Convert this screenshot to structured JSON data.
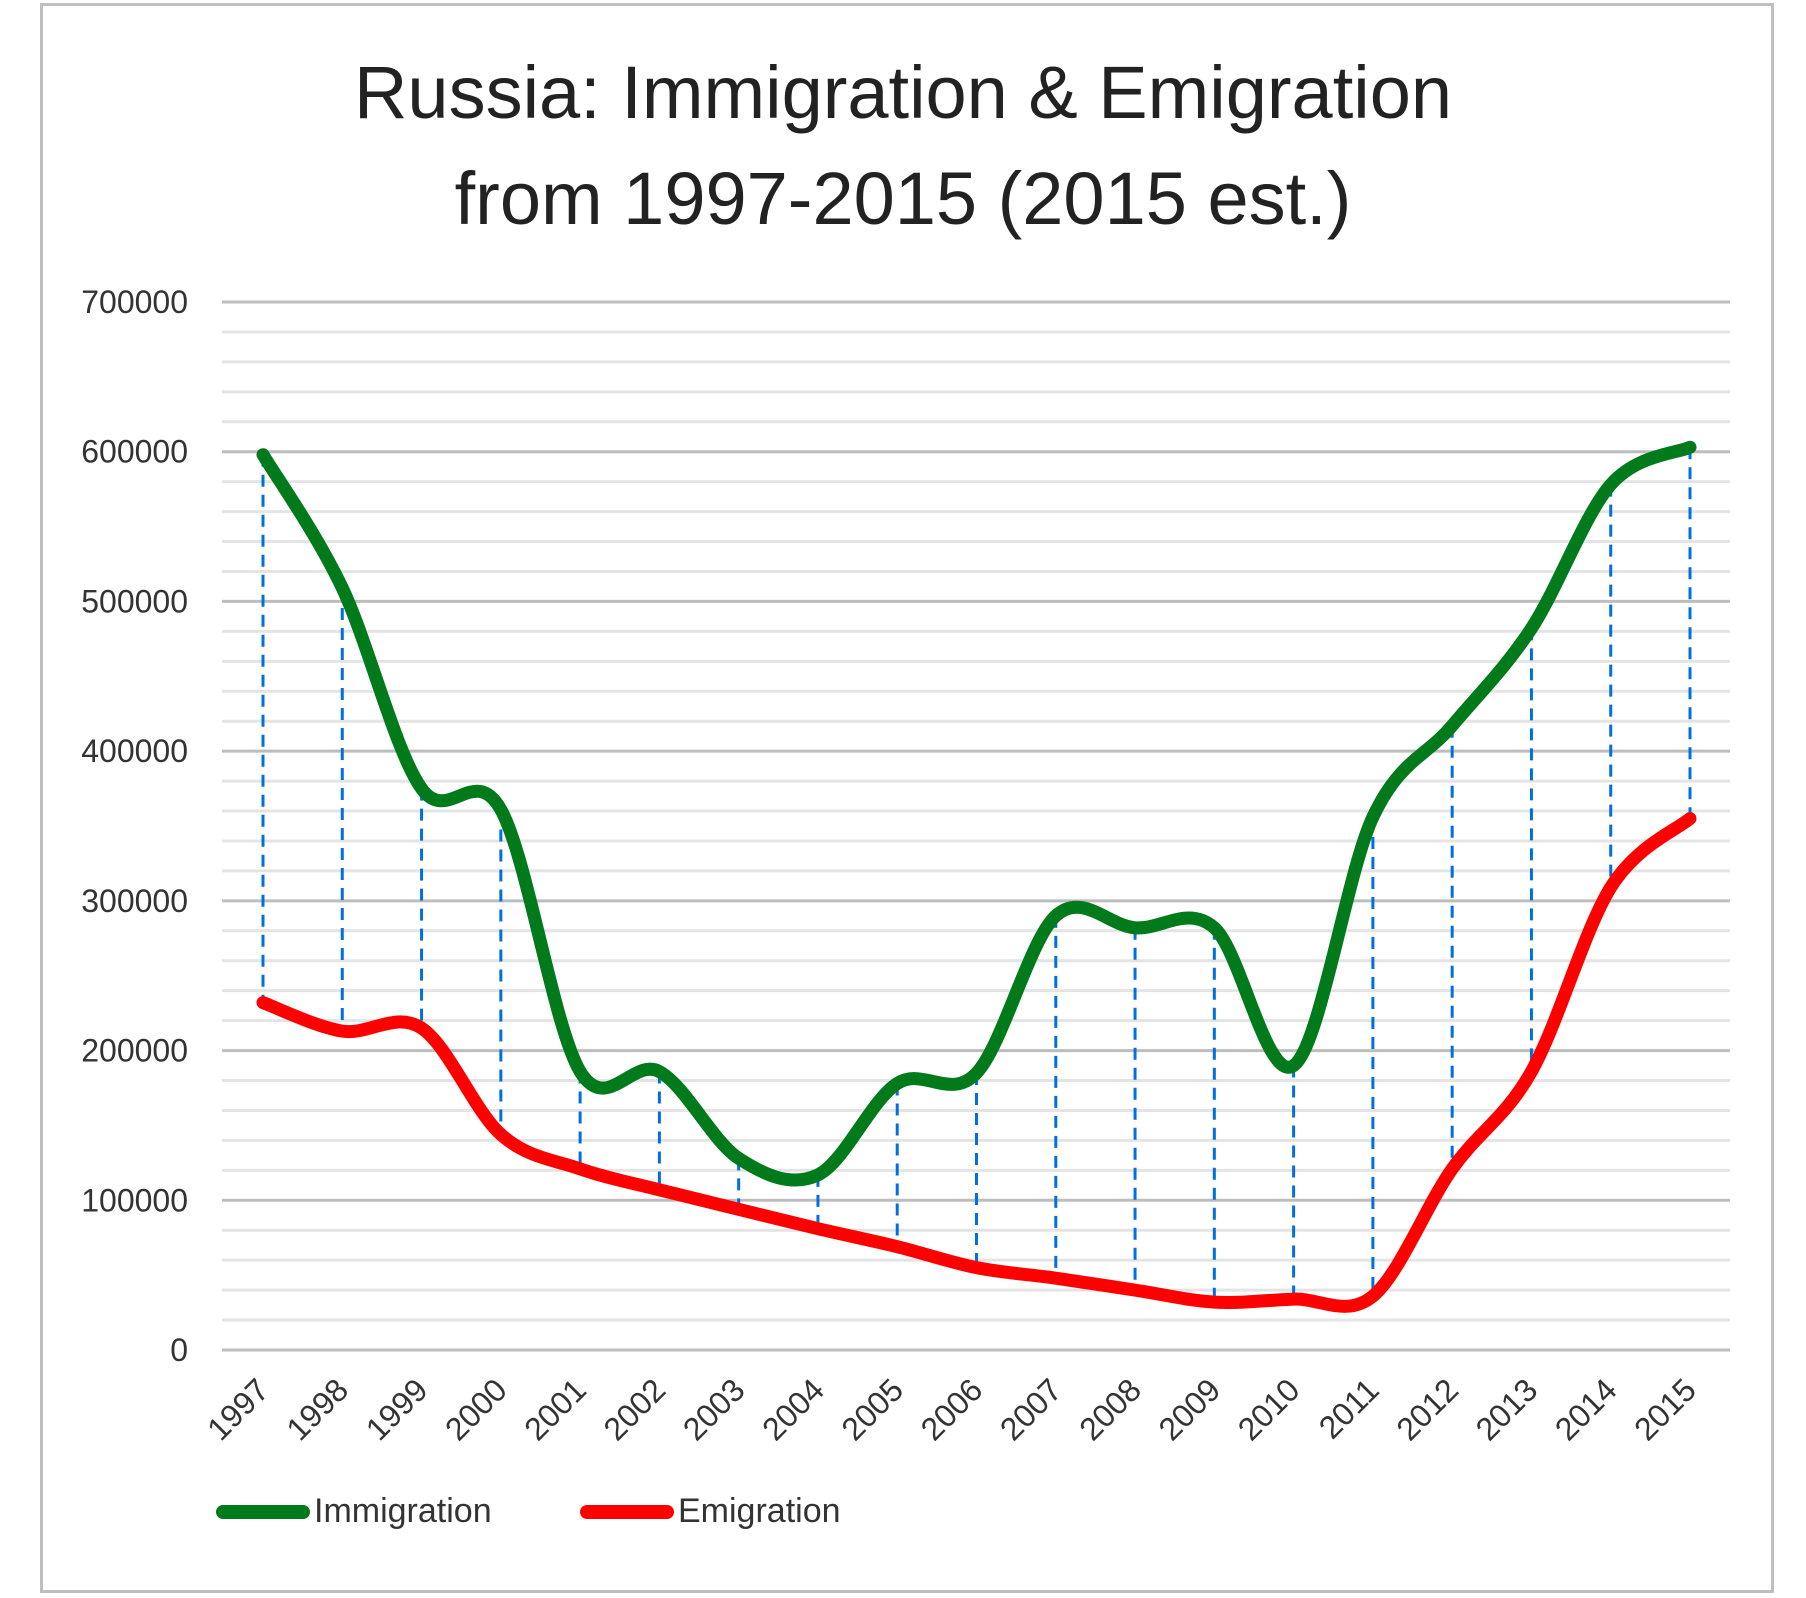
{
  "chart_data": {
    "type": "line",
    "title": [
      "Russia: Immigration & Emigration",
      "from 1997-2015 (2015 est.)"
    ],
    "xlabel": "",
    "ylabel": "",
    "categories": [
      "1997",
      "1998",
      "1999",
      "2000",
      "2001",
      "2002",
      "2003",
      "2004",
      "2005",
      "2006",
      "2007",
      "2008",
      "2009",
      "2010",
      "2011",
      "2012",
      "2013",
      "2014",
      "2015"
    ],
    "ylim": [
      0,
      700000
    ],
    "yticks": [
      "0",
      "100000",
      "200000",
      "300000",
      "400000",
      "500000",
      "600000",
      "700000"
    ],
    "ytick_values": [
      0,
      100000,
      200000,
      300000,
      400000,
      500000,
      600000,
      700000
    ],
    "minor_grid_step": 20000,
    "grid": true,
    "smooth": true,
    "drop_lines": true,
    "legend_position": "bottom-left",
    "series": [
      {
        "name": "Immigration",
        "color": "#007a1a",
        "values": [
          598000,
          509000,
          375000,
          361000,
          186000,
          186000,
          128000,
          117000,
          178000,
          185000,
          290000,
          282000,
          282000,
          190000,
          356000,
          417000,
          482000,
          578000,
          603000
        ]
      },
      {
        "name": "Emigration",
        "color": "#ff0000",
        "values": [
          232000,
          213000,
          215000,
          144000,
          121000,
          107000,
          94000,
          81000,
          69000,
          55000,
          48000,
          40000,
          32000,
          34000,
          36000,
          121000,
          186000,
          309000,
          355000
        ]
      }
    ],
    "drop_line_color": "#0070e0"
  }
}
